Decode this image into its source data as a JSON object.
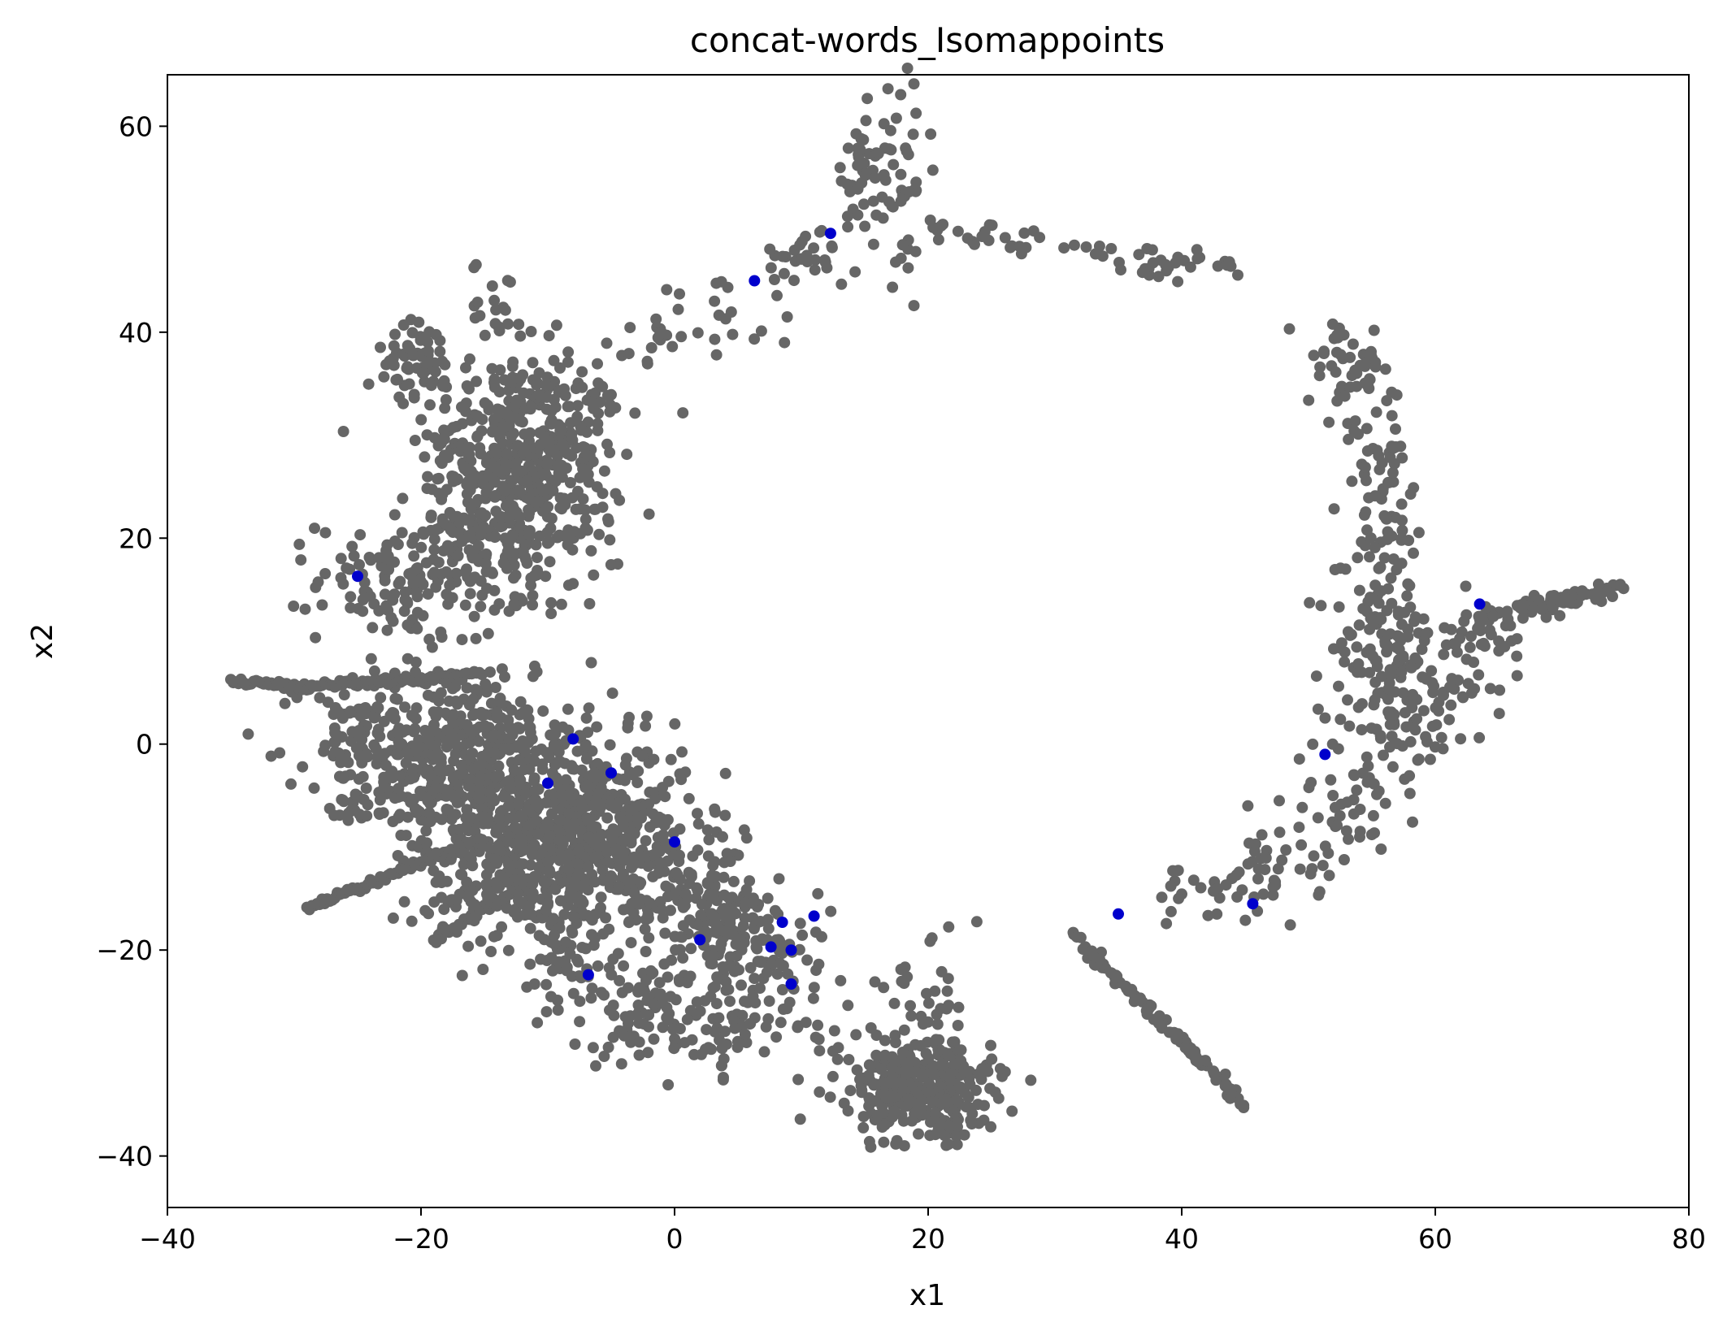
{
  "chart_data": {
    "type": "scatter",
    "title": "concat-words_Isomappoints",
    "xlabel": "x1",
    "ylabel": "x2",
    "xlim": [
      -40,
      80
    ],
    "ylim": [
      -45,
      65
    ],
    "xticks": [
      -40,
      -20,
      0,
      20,
      40,
      60,
      80
    ],
    "yticks": [
      -40,
      -20,
      0,
      20,
      40,
      60
    ],
    "xtick_labels": [
      "−40",
      "−20",
      "0",
      "20",
      "40",
      "60",
      "80"
    ],
    "ytick_labels": [
      "−40",
      "−20",
      "0",
      "20",
      "40",
      "60"
    ],
    "grid": false,
    "legend": "none",
    "series": [
      {
        "color": "#666666",
        "description_clusters": [
          {
            "points": [
              [
                -35,
                6
              ],
              [
                -33,
                6
              ],
              [
                -31,
                5.6
              ],
              [
                -29,
                5.6
              ],
              [
                -27,
                5.8
              ],
              [
                -25,
                6
              ],
              [
                -23,
                6
              ],
              [
                -21,
                6.2
              ],
              [
                -19,
                6.4
              ],
              [
                -17,
                6.6
              ],
              [
                -15,
                7
              ]
            ]
          },
          {
            "points": [
              [
                -29,
                -16
              ],
              [
                -27,
                -15
              ],
              [
                -25,
                -14
              ],
              [
                -23,
                -13
              ],
              [
                -21,
                -12
              ],
              [
                -19,
                -11
              ],
              [
                -17,
                -10
              ],
              [
                -15,
                -9
              ]
            ]
          },
          {
            "points": [
              [
                -19,
                -19
              ],
              [
                -17,
                -17.5
              ],
              [
                -15,
                -16
              ],
              [
                -13,
                -14.5
              ],
              [
                -11,
                -13
              ]
            ]
          }
        ]
      },
      {
        "color": "#0000cc",
        "points": [
          [
            -8,
            0.5
          ],
          [
            -5,
            -2.8
          ],
          [
            -10,
            -3.8
          ],
          [
            0,
            -9.5
          ],
          [
            8.5,
            -17.3
          ],
          [
            11,
            -16.7
          ],
          [
            2,
            -19
          ],
          [
            7.6,
            -19.7
          ],
          [
            9.2,
            -20
          ],
          [
            9.2,
            -23.3
          ],
          [
            -6.8,
            -22.4
          ],
          [
            12.3,
            49.6
          ],
          [
            6.3,
            45
          ],
          [
            51.3,
            -1
          ],
          [
            45.6,
            -15.5
          ],
          [
            35,
            -16.5
          ],
          [
            -25,
            16.3
          ],
          [
            63.5,
            13.6
          ]
        ]
      }
    ]
  }
}
